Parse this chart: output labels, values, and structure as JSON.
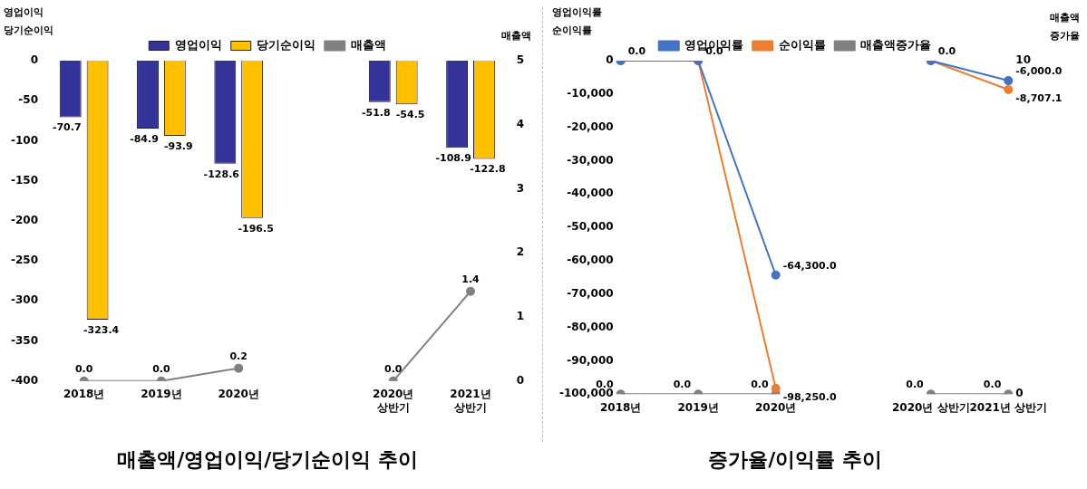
{
  "chart_data": [
    {
      "type": "bar",
      "title": "매출액/영업이익/당기순이익 추이",
      "ylabel": "영업이익\n당기순이익",
      "y2label": "매출액",
      "categories": [
        "2018년",
        "2019년",
        "2020년",
        null,
        "2020년\n상반기",
        "2021년\n상반기"
      ],
      "series": [
        {
          "name": "영업이익",
          "color": "#333399",
          "values": [
            -70.7,
            -84.9,
            -128.6,
            null,
            -51.8,
            -108.9
          ],
          "value_labels": [
            "-70.7",
            "-84.9",
            "-128.6",
            null,
            "-51.8",
            "-108.9"
          ]
        },
        {
          "name": "당기순이익",
          "color": "#ffc000",
          "values": [
            -323.4,
            -93.9,
            -196.5,
            null,
            -54.5,
            -122.8
          ],
          "value_labels": [
            "-323.4",
            "-93.9",
            "-196.5",
            null,
            "-54.5",
            "-122.8"
          ]
        },
        {
          "name": "매출액",
          "type": "line",
          "axis": "y2",
          "color": "#808080",
          "values": [
            0,
            0,
            0.2,
            null,
            0,
            1.4
          ],
          "value_labels": [
            "0.0",
            "0.0",
            "0.2",
            null,
            "0.0",
            "1.4"
          ]
        }
      ],
      "ylim": [
        -400,
        0
      ],
      "yticks": [
        -400,
        -350,
        -300,
        -250,
        -200,
        -150,
        -100,
        -50,
        0
      ],
      "y2lim": [
        0,
        5
      ],
      "y2ticks": [
        0,
        1,
        2,
        3,
        4,
        5
      ],
      "grid": false,
      "legend": "top",
      "marker": "circle",
      "line_style": "solid"
    },
    {
      "type": "line",
      "title": "증가율/이익률 추이",
      "ylabel": "영업이익률\n순이익률",
      "y2label": "매출액\n증가율",
      "categories": [
        "2018년",
        "2019년",
        "2020년",
        null,
        "2020년 상반기",
        "2021년 상반기"
      ],
      "series": [
        {
          "name": "영업이익률",
          "color": "#4472c4",
          "values": [
            0,
            0,
            -64300,
            null,
            0,
            -6000
          ],
          "value_labels": [
            "0.0",
            "0.0",
            "-64,300.0",
            null,
            "0.0",
            "-6,000.0"
          ]
        },
        {
          "name": "순이익률",
          "color": "#ed7d31",
          "values": [
            0,
            0,
            -98250,
            null,
            0,
            -8707.1
          ],
          "value_labels": [
            null,
            null,
            "-98,250.0",
            null,
            null,
            "-8,707.1"
          ]
        },
        {
          "name": "매출액증가율",
          "axis": "y2",
          "color": "#808080",
          "values": [
            0,
            0,
            0,
            null,
            0,
            0
          ],
          "value_labels": [
            "0.0",
            "0.0",
            "0.0",
            null,
            "0.0",
            "0.0"
          ]
        }
      ],
      "ylim": [
        -100000,
        0
      ],
      "yticks": [
        {
          "value": -100000,
          "label": "-100,000"
        },
        {
          "value": -90000,
          "label": "-90,000"
        },
        {
          "value": -80000,
          "label": "-80,000"
        },
        {
          "value": -70000,
          "label": "-70,000"
        },
        {
          "value": -60000,
          "label": "-60,000"
        },
        {
          "value": -50000,
          "label": "-50,000"
        },
        {
          "value": -40000,
          "label": "-40,000"
        },
        {
          "value": -30000,
          "label": "-30,000"
        },
        {
          "value": -20000,
          "label": "-20,000"
        },
        {
          "value": -10000,
          "label": "-10,000"
        },
        0
      ],
      "y2lim": [
        0,
        10
      ],
      "y2ticks": [
        0,
        10
      ],
      "grid": false,
      "legend": "top",
      "marker": "circle",
      "line_style": "solid"
    }
  ]
}
